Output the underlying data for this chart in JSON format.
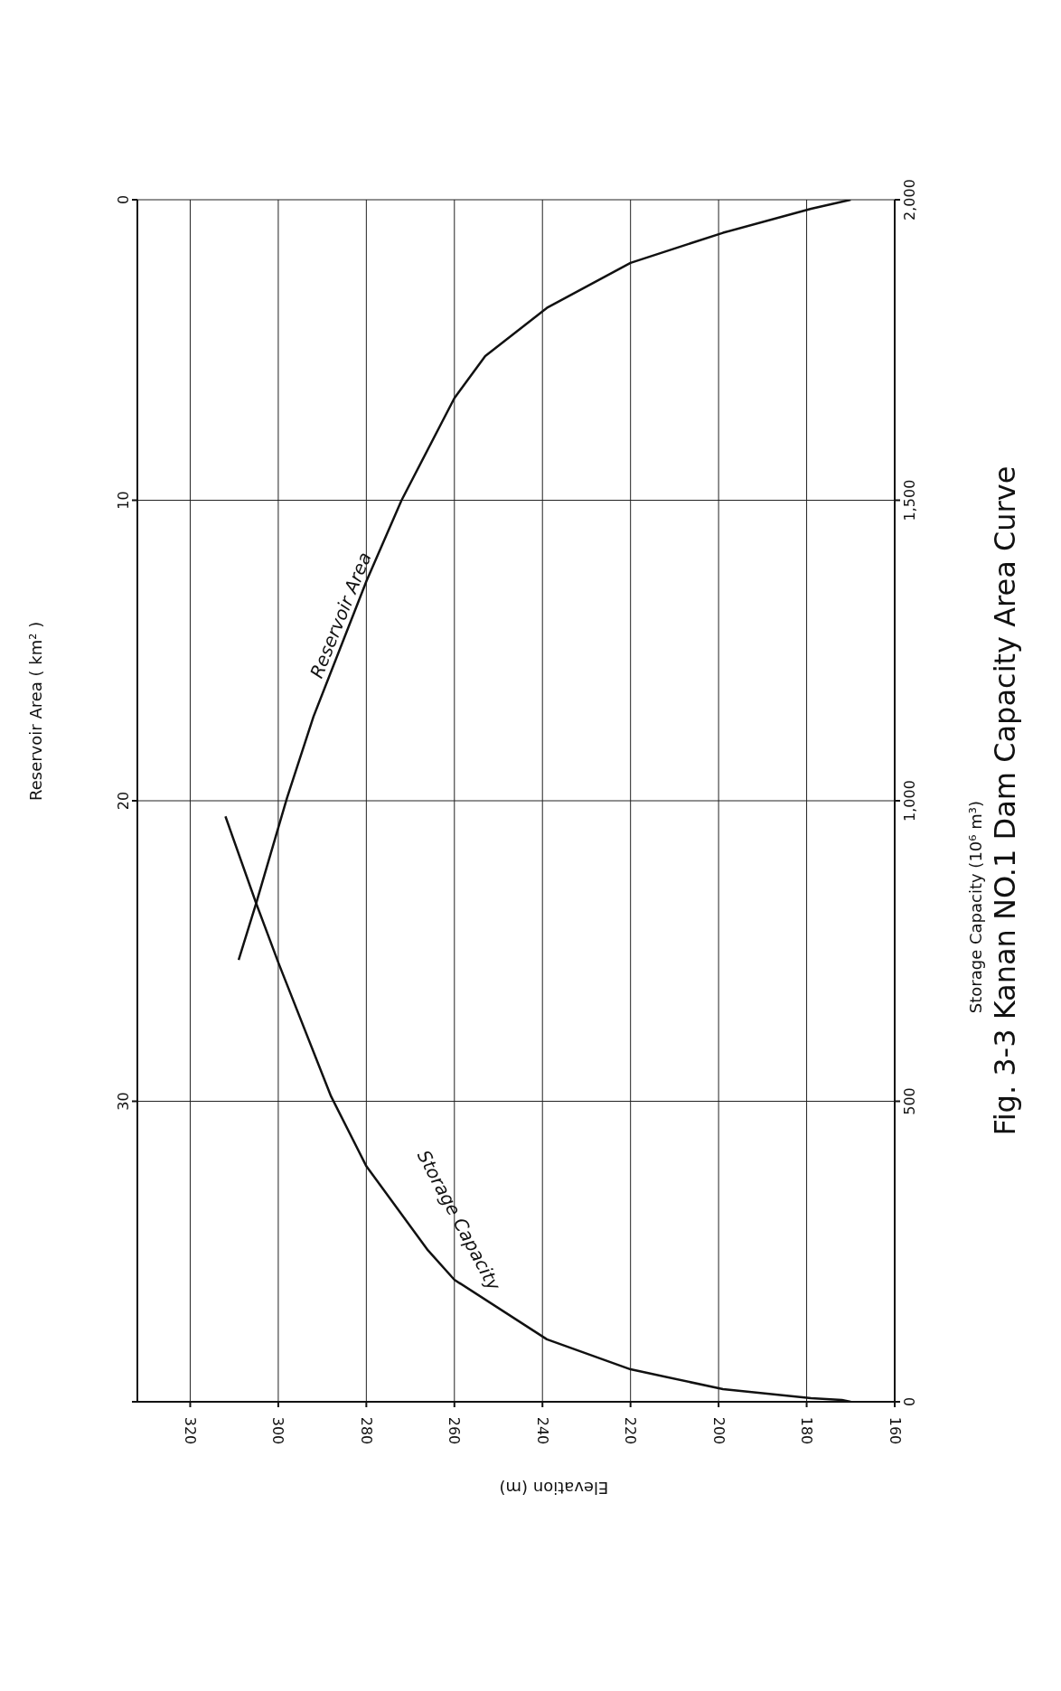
{
  "chart_data": {
    "type": "line",
    "title": "Fig. 3-3  Kanan NO.1  Dam  Capacity  Area  Curve",
    "xlabel": "Elevation  (m)",
    "ylabel": "Reservoir  Area  ( km² )",
    "y2label": "Storage  Capacity  (10⁶ m³)",
    "series": [
      {
        "name": "Storage Capacity",
        "color": "#111111",
        "axis": "y2",
        "x": [
          170,
          172,
          179,
          199,
          220,
          239,
          260,
          266,
          280,
          288,
          300,
          305,
          312
        ],
        "values": [
          0,
          3,
          6,
          21,
          54,
          104,
          203,
          252,
          392,
          508,
          731,
          829,
          974
        ]
      },
      {
        "name": "Reservoir Area",
        "color": "#111111",
        "x": [
          170,
          179,
          199,
          220,
          239,
          253,
          260,
          272,
          280,
          292,
          298,
          300,
          305,
          309
        ],
        "values": [
          0,
          0.3,
          1.1,
          2.1,
          3.6,
          5.2,
          6.6,
          10,
          12.7,
          17.2,
          19.9,
          20.9,
          23.4,
          25.3
        ]
      }
    ],
    "xlim": [
      332,
      160
    ],
    "xticks": [
      320,
      300,
      280,
      260,
      240,
      220,
      200,
      180,
      160
    ],
    "ylim": [
      40,
      0
    ],
    "yticks": [
      {
        "value": 40,
        "label": null
      },
      30,
      20,
      10,
      0
    ],
    "y2lim": [
      0,
      2000
    ],
    "y2ticks": [
      0,
      500,
      {
        "value": 1000,
        "label": "1,000"
      },
      {
        "value": 1500,
        "label": "1,500"
      },
      {
        "value": 2000,
        "label": "2,000"
      }
    ],
    "grid": true,
    "marker": "none",
    "line_style": "solid"
  }
}
